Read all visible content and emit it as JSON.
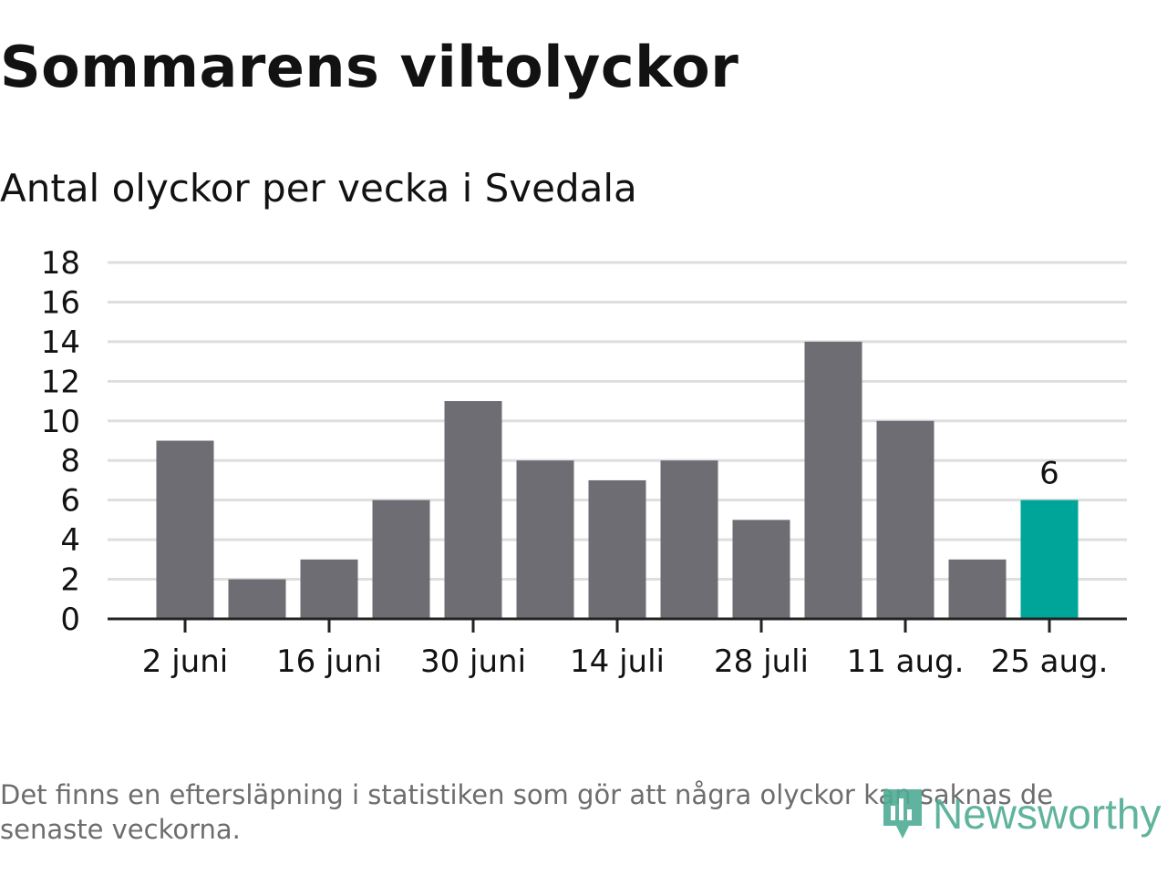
{
  "title": "Sommarens viltolyckor",
  "subtitle": "Antal olyckor per vecka i Svedala",
  "footnote": "Det finns en eftersläpning i statistiken som gör att några olyckor kan saknas de senaste veckorna.",
  "logo_text": "Newsworthy",
  "colors": {
    "bar": "#6e6d73",
    "highlight": "#00a599",
    "grid": "#dedede",
    "axis": "#222222",
    "text": "#121212",
    "logo": "#4fab93"
  },
  "chart_data": {
    "type": "bar",
    "values": [
      9,
      2,
      3,
      6,
      11,
      8,
      7,
      8,
      5,
      14,
      10,
      3,
      6
    ],
    "highlight_index": 12,
    "x_tick_labels": [
      "2 juni",
      "16 juni",
      "30 juni",
      "14 juli",
      "28 juli",
      "11 aug.",
      "25 aug."
    ],
    "x_tick_every": 2,
    "y_ticks": [
      0,
      2,
      4,
      6,
      8,
      10,
      12,
      14,
      16,
      18
    ],
    "ylim": [
      0,
      18
    ],
    "data_label": "6",
    "grid": true
  }
}
